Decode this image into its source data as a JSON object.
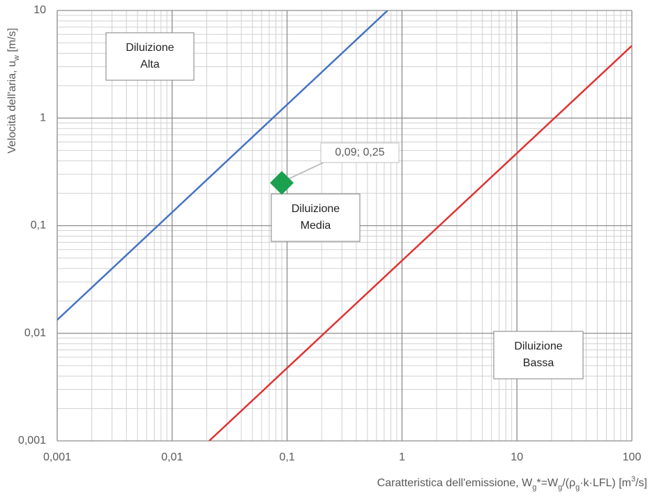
{
  "chart_data": {
    "type": "line",
    "x_label": [
      {
        "text": "Caratteristica dell'emissione, W"
      },
      {
        "text": "g",
        "shift": "sub"
      },
      {
        "text": "*=W"
      },
      {
        "text": "g",
        "shift": "sub"
      },
      {
        "text": "/(ρ"
      },
      {
        "text": "g",
        "shift": "sub"
      },
      {
        "text": "·k·LFL) [m"
      },
      {
        "text": "3",
        "shift": "super"
      },
      {
        "text": "/s]"
      }
    ],
    "y_label": [
      {
        "text": "Velocità dell'aria, u"
      },
      {
        "text": "w",
        "shift": "sub"
      },
      {
        "text": " [m/s]"
      }
    ],
    "log_x": true,
    "log_y": true,
    "grid": true,
    "minor_grid": true,
    "xlim": [
      0.001,
      100
    ],
    "ylim": [
      0.001,
      10
    ],
    "xticks": [
      {
        "value": 0.001,
        "label": "0,001"
      },
      {
        "value": 0.01,
        "label": "0,01"
      },
      {
        "value": 0.1,
        "label": "0,1"
      },
      1,
      10,
      100
    ],
    "yticks": [
      {
        "value": 0.001,
        "label": "0,001"
      },
      {
        "value": 0.01,
        "label": "0,01"
      },
      {
        "value": 0.1,
        "label": "0,1"
      },
      1,
      10
    ],
    "series": [
      {
        "color": "#4472c4",
        "x": [
          0.001,
          0.75
        ],
        "values": [
          0.0133,
          10
        ]
      },
      {
        "color": "#e03030",
        "x": [
          0.021,
          100
        ],
        "values": [
          0.001,
          4.7
        ]
      }
    ],
    "points": [
      {
        "color": "#1aa04f",
        "x": 0.09,
        "value": 0.25,
        "value_label": "0,09; 0,25"
      }
    ],
    "annotations": [
      {
        "lines": [
          "Diluizione",
          "Alta"
        ]
      },
      {
        "lines": [
          "Diluizione",
          "Media"
        ]
      },
      {
        "lines": [
          "Diluizione",
          "Bassa"
        ]
      }
    ]
  }
}
